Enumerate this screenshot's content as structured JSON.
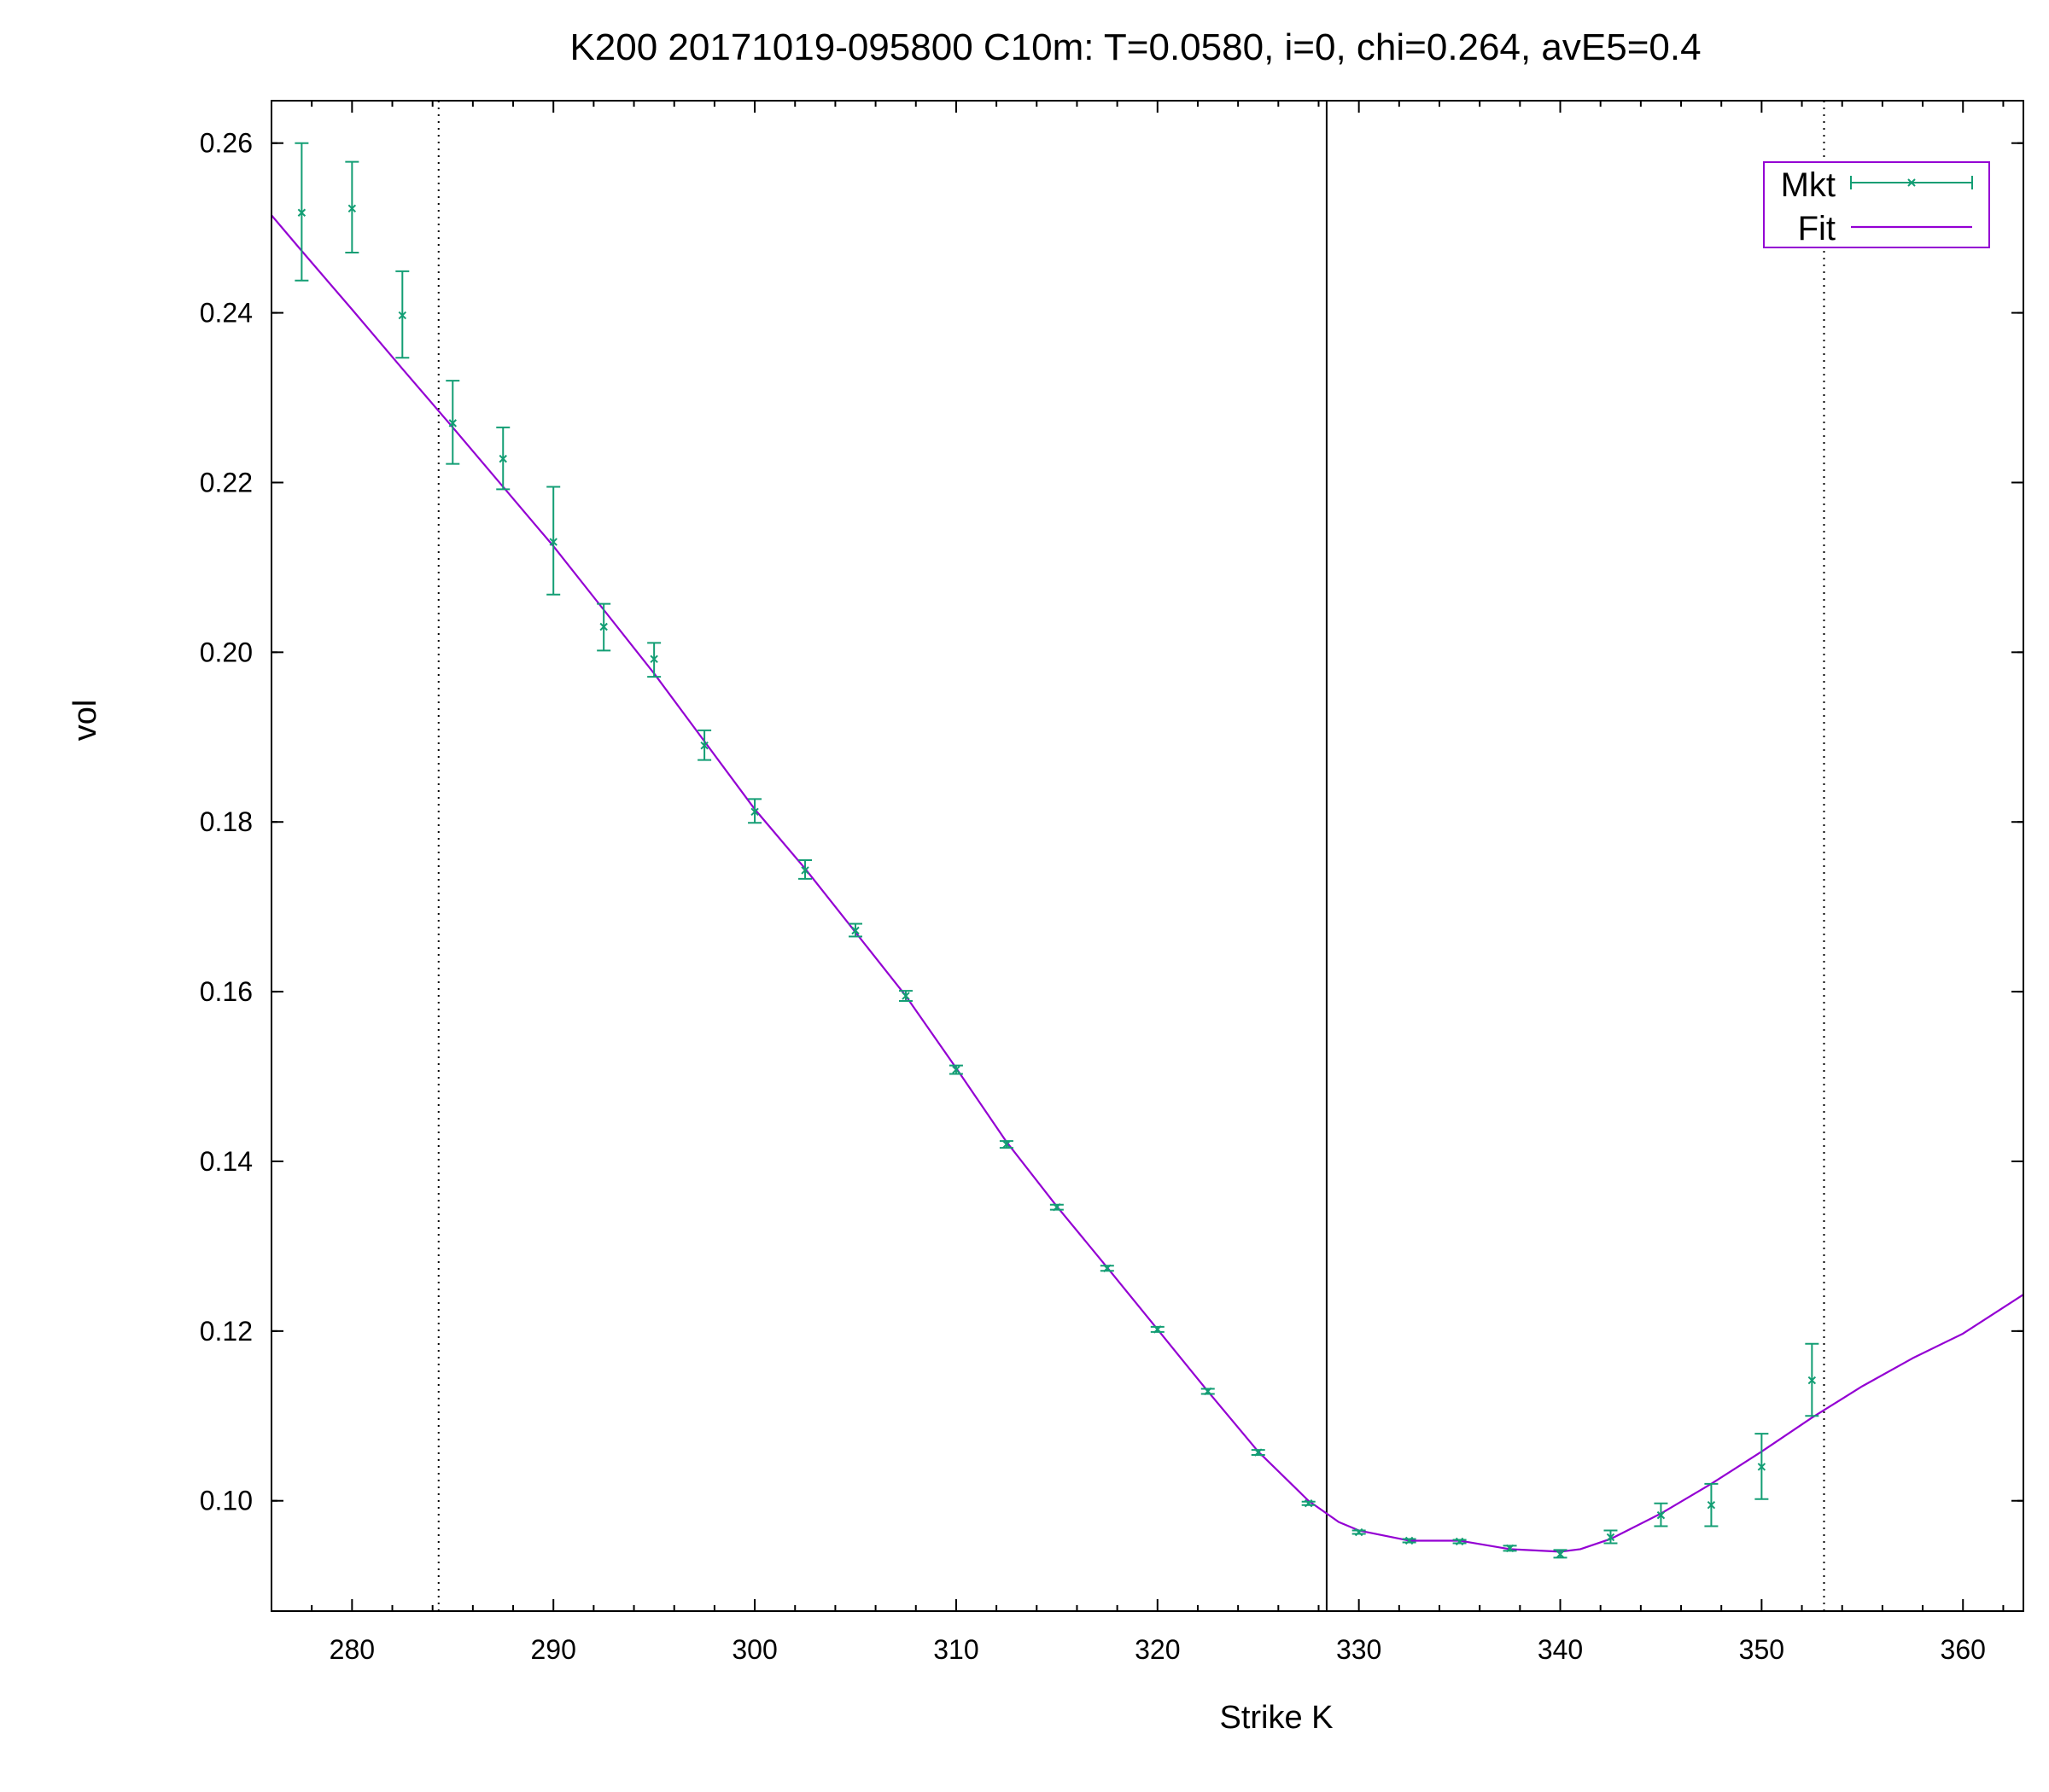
{
  "chart_data": {
    "type": "scatter",
    "title": "K200 20171019-095800  C10m:  T=0.0580, i=0, chi=0.264, avE5=0.4",
    "xlabel": "Strike K",
    "ylabel": "vol",
    "xlim": [
      276,
      363
    ],
    "ylim": [
      0.087,
      0.265
    ],
    "x_ticks": [
      280,
      290,
      300,
      310,
      320,
      330,
      340,
      350,
      360
    ],
    "x_tick_labels": [
      "280",
      "290",
      "300",
      "310",
      "320",
      "330",
      "340",
      "350",
      "360"
    ],
    "y_ticks": [
      0.1,
      0.12,
      0.14,
      0.16,
      0.18,
      0.2,
      0.22,
      0.24,
      0.26
    ],
    "y_tick_labels": [
      "0.10",
      "0.12",
      "0.14",
      "0.16",
      "0.18",
      "0.20",
      "0.22",
      "0.24",
      "0.26"
    ],
    "grid": false,
    "legend_position": "top-right",
    "vertical_lines": [
      {
        "x": 284.3,
        "style": "dotted"
      },
      {
        "x": 328.4,
        "style": "solid"
      },
      {
        "x": 353.1,
        "style": "dotted"
      }
    ],
    "series": [
      {
        "name": "Mkt",
        "kind": "errorbars",
        "color": "#139e74",
        "points": [
          {
            "x": 277.5,
            "y": 0.2518,
            "lo": 0.2438,
            "hi": 0.26
          },
          {
            "x": 280.0,
            "y": 0.2523,
            "lo": 0.2471,
            "hi": 0.2578
          },
          {
            "x": 282.5,
            "y": 0.2397,
            "lo": 0.2347,
            "hi": 0.2449
          },
          {
            "x": 285.0,
            "y": 0.227,
            "lo": 0.2222,
            "hi": 0.232
          },
          {
            "x": 287.5,
            "y": 0.2228,
            "lo": 0.2192,
            "hi": 0.2265
          },
          {
            "x": 290.0,
            "y": 0.213,
            "lo": 0.2068,
            "hi": 0.2195
          },
          {
            "x": 292.5,
            "y": 0.203,
            "lo": 0.2002,
            "hi": 0.2057
          },
          {
            "x": 295.0,
            "y": 0.1992,
            "lo": 0.1971,
            "hi": 0.2011
          },
          {
            "x": 297.5,
            "y": 0.189,
            "lo": 0.1873,
            "hi": 0.1908
          },
          {
            "x": 300.0,
            "y": 0.1812,
            "lo": 0.1799,
            "hi": 0.1827
          },
          {
            "x": 302.5,
            "y": 0.1743,
            "lo": 0.1733,
            "hi": 0.1755
          },
          {
            "x": 305.0,
            "y": 0.1672,
            "lo": 0.1665,
            "hi": 0.168
          },
          {
            "x": 307.5,
            "y": 0.1595,
            "lo": 0.1589,
            "hi": 0.1601
          },
          {
            "x": 310.0,
            "y": 0.1508,
            "lo": 0.1503,
            "hi": 0.1513
          },
          {
            "x": 312.5,
            "y": 0.142,
            "lo": 0.1416,
            "hi": 0.1424
          },
          {
            "x": 315.0,
            "y": 0.1346,
            "lo": 0.1343,
            "hi": 0.1349
          },
          {
            "x": 317.5,
            "y": 0.1274,
            "lo": 0.1271,
            "hi": 0.1277
          },
          {
            "x": 320.0,
            "y": 0.1202,
            "lo": 0.1199,
            "hi": 0.1205
          },
          {
            "x": 322.5,
            "y": 0.1129,
            "lo": 0.1126,
            "hi": 0.1132
          },
          {
            "x": 325.0,
            "y": 0.1057,
            "lo": 0.1054,
            "hi": 0.106
          },
          {
            "x": 327.5,
            "y": 0.0997,
            "lo": 0.0995,
            "hi": 0.0999
          },
          {
            "x": 330.0,
            "y": 0.0963,
            "lo": 0.0961,
            "hi": 0.0965
          },
          {
            "x": 332.5,
            "y": 0.0953,
            "lo": 0.0951,
            "hi": 0.0955
          },
          {
            "x": 335.0,
            "y": 0.0952,
            "lo": 0.095,
            "hi": 0.0954
          },
          {
            "x": 337.5,
            "y": 0.0944,
            "lo": 0.0941,
            "hi": 0.0947
          },
          {
            "x": 340.0,
            "y": 0.0937,
            "lo": 0.0933,
            "hi": 0.0942
          },
          {
            "x": 342.5,
            "y": 0.0957,
            "lo": 0.095,
            "hi": 0.0965
          },
          {
            "x": 345.0,
            "y": 0.0983,
            "lo": 0.097,
            "hi": 0.0997
          },
          {
            "x": 347.5,
            "y": 0.0995,
            "lo": 0.097,
            "hi": 0.102
          },
          {
            "x": 350.0,
            "y": 0.104,
            "lo": 0.1002,
            "hi": 0.1079
          },
          {
            "x": 352.5,
            "y": 0.1142,
            "lo": 0.11,
            "hi": 0.1185
          }
        ]
      },
      {
        "name": "Fit",
        "kind": "line",
        "color": "#9400d3",
        "x": [
          276,
          277.5,
          280,
          282.5,
          285,
          287.5,
          290,
          292.5,
          295,
          297.5,
          300,
          302.5,
          305,
          307.5,
          310,
          312.5,
          315,
          317.5,
          320,
          322.5,
          325,
          327.5,
          329,
          330,
          332.5,
          335,
          337.5,
          340,
          341,
          342.5,
          345,
          347.5,
          350,
          352.5,
          355,
          357.5,
          360,
          363
        ],
        "y": [
          0.2515,
          0.2473,
          0.2404,
          0.2334,
          0.2265,
          0.2195,
          0.2125,
          0.205,
          0.1975,
          0.1895,
          0.1815,
          0.1745,
          0.167,
          0.1595,
          0.151,
          0.1423,
          0.1347,
          0.1275,
          0.1202,
          0.1129,
          0.1058,
          0.1,
          0.0975,
          0.0965,
          0.0953,
          0.0953,
          0.0943,
          0.094,
          0.0943,
          0.0955,
          0.0985,
          0.102,
          0.1058,
          0.1098,
          0.1135,
          0.1168,
          0.1197,
          0.1243
        ]
      }
    ]
  }
}
